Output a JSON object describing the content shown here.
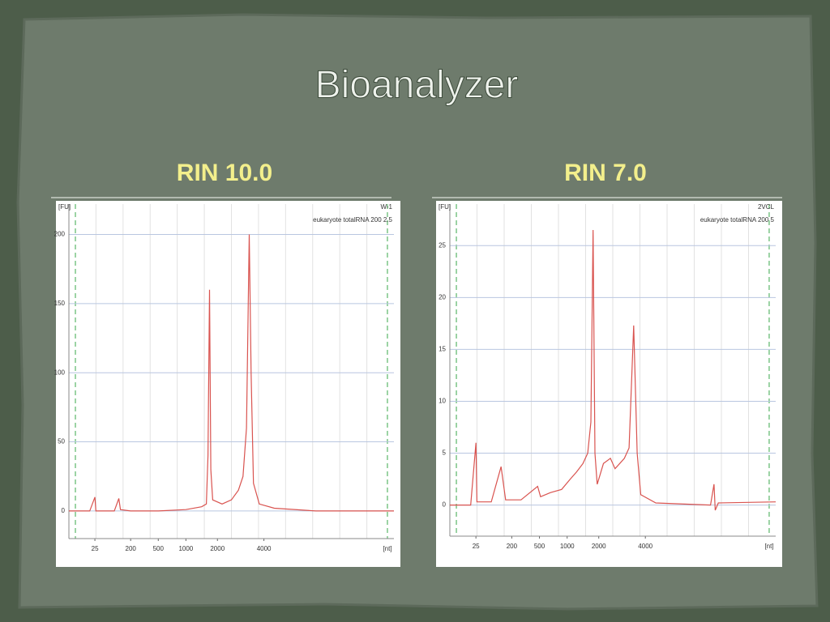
{
  "slide_title": "Bioanalyzer",
  "chart_data": [
    {
      "type": "line",
      "title": "RIN 10.0",
      "ylabel": "[FU]",
      "xlabel": "[nt]",
      "annotations": [
        "W-1",
        "eukaryote totalRNA 200 2.5"
      ],
      "color": "#d9534f",
      "x": [
        0,
        20,
        25,
        30,
        120,
        142,
        150,
        200,
        500,
        1000,
        1500,
        1650,
        1700,
        1750,
        1790,
        1850,
        2200,
        2600,
        2900,
        3100,
        3250,
        3370,
        3450,
        3550,
        3800,
        4200,
        5000,
        6500
      ],
      "values": [
        0,
        0,
        10,
        0,
        0,
        9,
        1,
        0,
        0,
        1,
        3,
        5,
        40,
        160,
        30,
        8,
        5,
        8,
        15,
        25,
        60,
        200,
        100,
        20,
        5,
        2,
        0,
        0
      ],
      "xlim": [
        0,
        6500
      ],
      "xticks": [
        25,
        200,
        500,
        1000,
        2000,
        4000
      ],
      "ylim": [
        -20,
        222
      ],
      "yticks": [
        0,
        50,
        100,
        150,
        200
      ],
      "grid": true
    },
    {
      "type": "line",
      "title": "RIN 7.0",
      "ylabel": "[FU]",
      "xlabel": "[nt]",
      "annotations": [
        "2VCL",
        "eukaryote totalRNA 200 5"
      ],
      "color": "#d9534f",
      "x": [
        0,
        20,
        25,
        30,
        100,
        148,
        170,
        300,
        480,
        520,
        700,
        900,
        1100,
        1300,
        1500,
        1650,
        1750,
        1820,
        1880,
        1950,
        2200,
        2500,
        2700,
        2900,
        3100,
        3300,
        3500,
        3650,
        3800,
        4200,
        5250,
        5317,
        5340,
        5400,
        6500
      ],
      "values": [
        0,
        0,
        6,
        0.3,
        0.3,
        3.7,
        0.5,
        0.5,
        1.8,
        0.8,
        1.2,
        1.5,
        2.5,
        3.2,
        4,
        5,
        8,
        26.5,
        5,
        2,
        4,
        4.5,
        3.5,
        4,
        4.5,
        5.5,
        17.3,
        5,
        1,
        0.2,
        0,
        2,
        -0.5,
        0.2,
        0.3
      ],
      "xlim": [
        0,
        6500
      ],
      "xticks": [
        25,
        200,
        500,
        1000,
        2000,
        4000
      ],
      "ylim": [
        -3,
        29
      ],
      "yticks": [
        0,
        5,
        10,
        15,
        20,
        25
      ],
      "grid": true
    }
  ]
}
